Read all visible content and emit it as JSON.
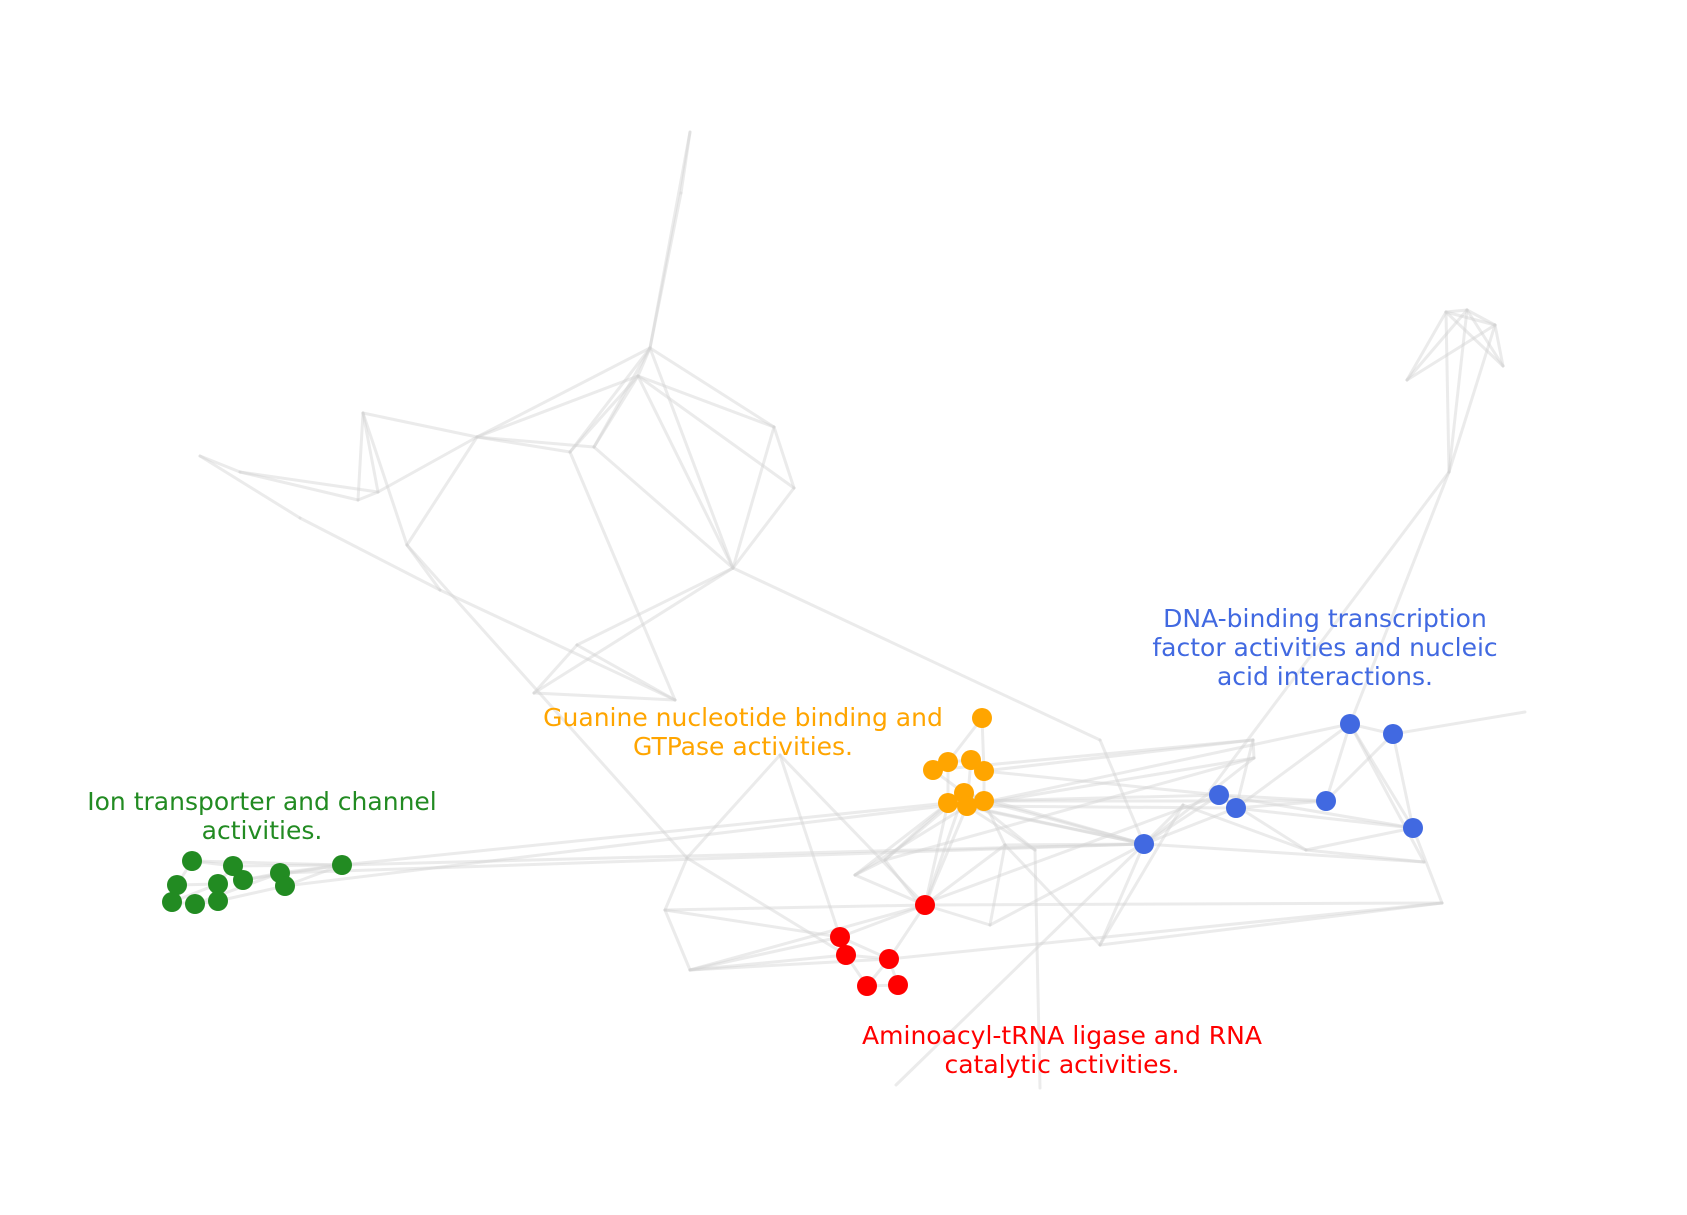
{
  "diagram": {
    "background_edge_color": "#d3d3d3",
    "clusters": [
      {
        "id": "ion",
        "color": "#228b22",
        "label_lines": [
          "Ion transporter and channel",
          "activities."
        ]
      },
      {
        "id": "gtp",
        "color": "#ffa500",
        "label_lines": [
          "Guanine nucleotide binding and",
          "GTPase activities."
        ]
      },
      {
        "id": "dna",
        "color": "#4169e1",
        "label_lines": [
          "DNA-binding transcription",
          "factor activities and nucleic",
          "acid interactions."
        ]
      },
      {
        "id": "trna",
        "color": "#ff0000",
        "label_lines": [
          "Aminoacyl-tRNA ligase and RNA",
          "catalytic activities."
        ]
      }
    ]
  }
}
